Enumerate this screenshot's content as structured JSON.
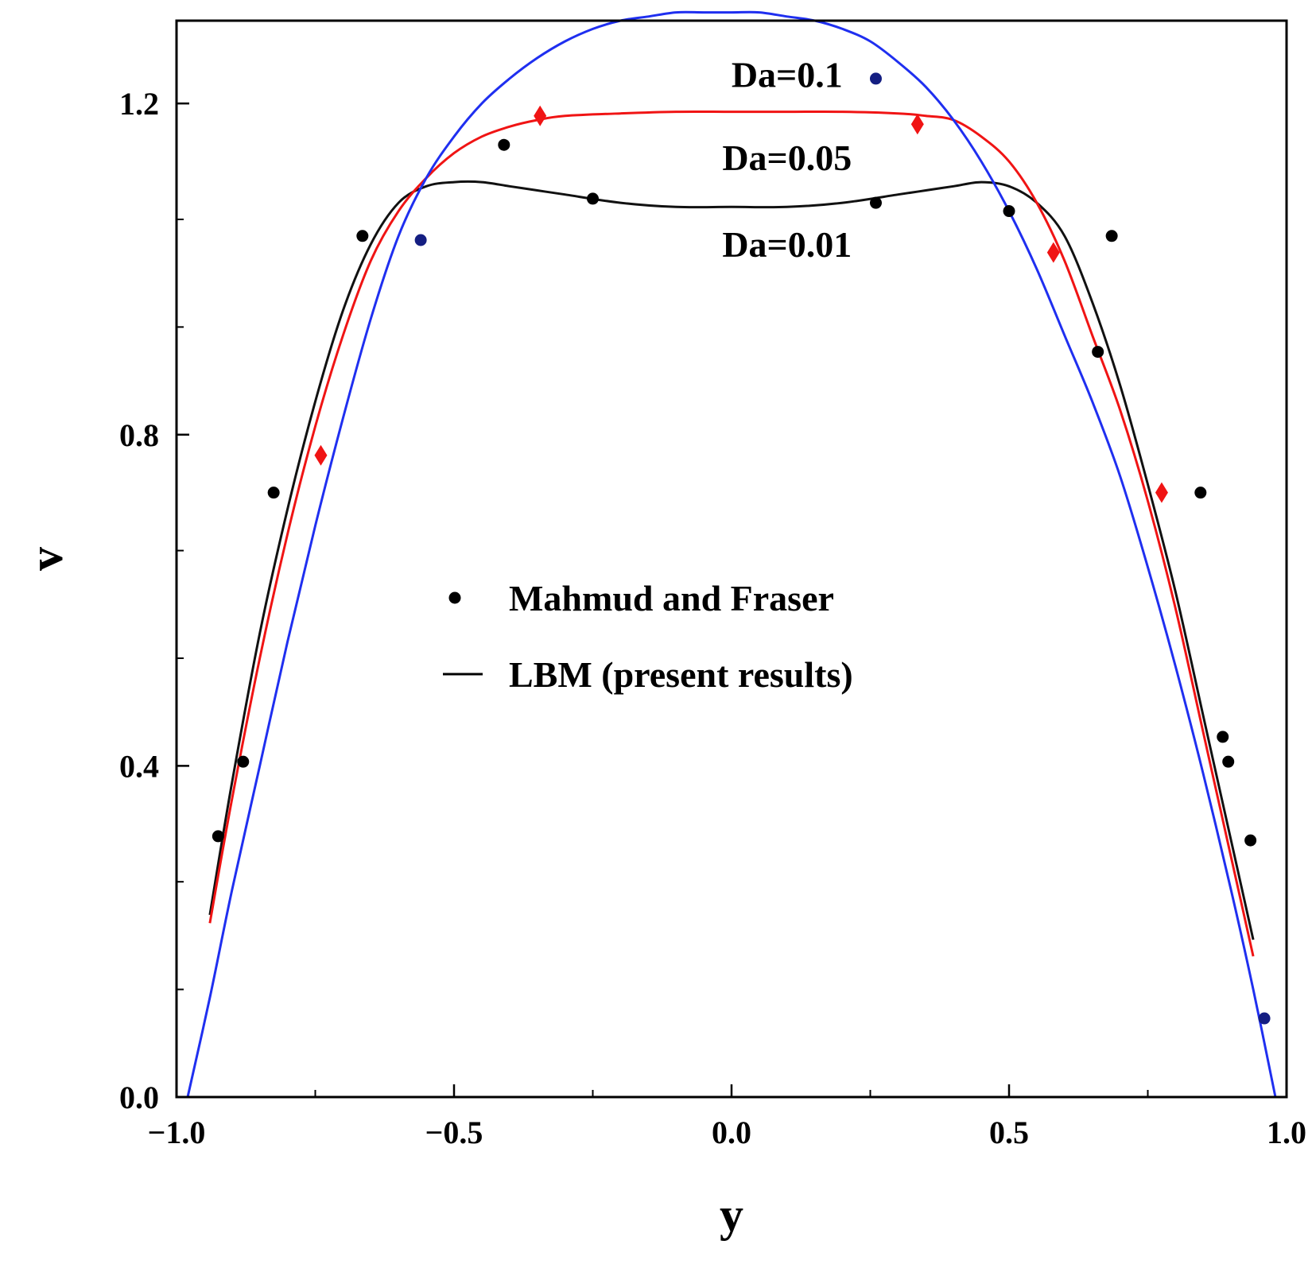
{
  "chart_data": {
    "type": "line",
    "xlabel": "y",
    "ylabel": "v",
    "xlim": [
      -1.0,
      1.0
    ],
    "ylim": [
      0.0,
      1.3
    ],
    "x_ticks": [
      {
        "value": -1.0,
        "label": "−1.0"
      },
      {
        "value": -0.5,
        "label": "−0.5"
      },
      {
        "value": 0.0,
        "label": "0.0"
      },
      {
        "value": 0.5,
        "label": "0.5"
      },
      {
        "value": 1.0,
        "label": "1.0"
      }
    ],
    "x_minor_ticks": [
      -0.75,
      -0.25,
      0.25,
      0.75
    ],
    "y_ticks": [
      {
        "value": 0.0,
        "label": "0.0"
      },
      {
        "value": 0.4,
        "label": "0.4"
      },
      {
        "value": 0.8,
        "label": "0.8"
      },
      {
        "value": 1.2,
        "label": "1.2"
      }
    ],
    "y_minor_ticks": [
      0.13,
      0.26,
      0.53,
      0.66,
      0.93,
      1.06
    ],
    "series": [
      {
        "label": "Da=0.1",
        "color": "#1f2ff0",
        "line": {
          "x": [
            -0.98,
            -0.94,
            -0.9,
            -0.85,
            -0.8,
            -0.75,
            -0.7,
            -0.65,
            -0.6,
            -0.55,
            -0.5,
            -0.45,
            -0.4,
            -0.35,
            -0.3,
            -0.25,
            -0.2,
            -0.15,
            -0.1,
            -0.05,
            0.0,
            0.05,
            0.1,
            0.15,
            0.2,
            0.25,
            0.3,
            0.35,
            0.4,
            0.45,
            0.5,
            0.55,
            0.6,
            0.65,
            0.7,
            0.75,
            0.8,
            0.85,
            0.9,
            0.94,
            0.98
          ],
          "y": [
            0.0,
            0.12,
            0.25,
            0.4,
            0.55,
            0.69,
            0.82,
            0.94,
            1.04,
            1.11,
            1.16,
            1.2,
            1.23,
            1.255,
            1.275,
            1.29,
            1.3,
            1.305,
            1.31,
            1.31,
            1.31,
            1.31,
            1.305,
            1.3,
            1.29,
            1.275,
            1.25,
            1.22,
            1.18,
            1.13,
            1.07,
            1.0,
            0.92,
            0.84,
            0.75,
            0.64,
            0.52,
            0.39,
            0.25,
            0.13,
            0.0
          ]
        },
        "points": {
          "marker": "circle",
          "color": "#141e82",
          "x": [
            -0.56,
            0.26,
            0.96
          ],
          "y": [
            1.035,
            1.23,
            0.095
          ]
        }
      },
      {
        "label": "Da=0.05",
        "color": "#f01414",
        "line": {
          "x": [
            -0.94,
            -0.9,
            -0.85,
            -0.8,
            -0.75,
            -0.7,
            -0.65,
            -0.6,
            -0.55,
            -0.5,
            -0.45,
            -0.4,
            -0.35,
            -0.3,
            -0.2,
            -0.1,
            0.0,
            0.1,
            0.2,
            0.3,
            0.35,
            0.4,
            0.45,
            0.5,
            0.55,
            0.6,
            0.65,
            0.7,
            0.75,
            0.8,
            0.85,
            0.9,
            0.94
          ],
          "y": [
            0.21,
            0.36,
            0.53,
            0.68,
            0.81,
            0.92,
            1.01,
            1.07,
            1.11,
            1.14,
            1.16,
            1.172,
            1.18,
            1.185,
            1.188,
            1.19,
            1.19,
            1.19,
            1.19,
            1.188,
            1.185,
            1.18,
            1.16,
            1.13,
            1.08,
            1.01,
            0.92,
            0.83,
            0.72,
            0.59,
            0.44,
            0.29,
            0.17
          ]
        },
        "points": {
          "marker": "diamond",
          "color": "#f01414",
          "x": [
            -0.74,
            -0.345,
            0.335,
            0.58,
            0.775
          ],
          "y": [
            0.775,
            1.185,
            1.175,
            1.02,
            0.73
          ]
        }
      },
      {
        "label": "Da=0.01",
        "color": "#111111",
        "line": {
          "x": [
            -0.94,
            -0.9,
            -0.85,
            -0.8,
            -0.75,
            -0.7,
            -0.65,
            -0.6,
            -0.55,
            -0.5,
            -0.45,
            -0.4,
            -0.35,
            -0.3,
            -0.2,
            -0.1,
            0.0,
            0.1,
            0.2,
            0.3,
            0.35,
            0.4,
            0.45,
            0.5,
            0.55,
            0.6,
            0.65,
            0.7,
            0.75,
            0.8,
            0.85,
            0.9,
            0.94
          ],
          "y": [
            0.22,
            0.38,
            0.56,
            0.71,
            0.84,
            0.95,
            1.03,
            1.08,
            1.1,
            1.105,
            1.105,
            1.1,
            1.095,
            1.09,
            1.08,
            1.075,
            1.075,
            1.075,
            1.08,
            1.09,
            1.095,
            1.1,
            1.105,
            1.1,
            1.08,
            1.04,
            0.96,
            0.86,
            0.74,
            0.61,
            0.46,
            0.31,
            0.19
          ]
        },
        "points": {
          "marker": "circle",
          "color": "#000000",
          "x": [
            -0.925,
            -0.88,
            -0.825,
            -0.665,
            -0.41,
            -0.25,
            0.26,
            0.5,
            0.66,
            0.685,
            0.845,
            0.885,
            0.895,
            0.935
          ],
          "y": [
            0.315,
            0.405,
            0.73,
            1.04,
            1.15,
            1.085,
            1.08,
            1.07,
            0.9,
            1.04,
            0.73,
            0.435,
            0.405,
            0.31
          ]
        }
      }
    ],
    "annotations": [
      {
        "text": "Da=0.1",
        "x": 0.1,
        "y": 1.235
      },
      {
        "text": "Da=0.05",
        "x": 0.1,
        "y": 1.135
      },
      {
        "text": "Da=0.01",
        "x": 0.1,
        "y": 1.03
      }
    ],
    "legend": {
      "position": "center",
      "entries": [
        {
          "marker": "circle",
          "label": "Mahmud and Fraser"
        },
        {
          "marker": "line",
          "label": "LBM (present results)"
        }
      ]
    },
    "grid": false
  }
}
